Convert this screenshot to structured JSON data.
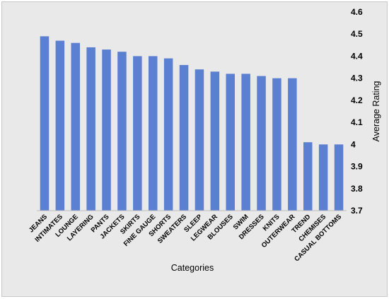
{
  "chart_data": {
    "type": "bar",
    "categories": [
      "JEANS",
      "INTIMATES",
      "LOUNGE",
      "LAYERING",
      "PANTS",
      "JACKETS",
      "SKIRTS",
      "FINE GAUGE",
      "SHORTS",
      "SWEATERS",
      "SLEEP",
      "LEGWEAR",
      "BLOUSES",
      "SWIM",
      "DRESSES",
      "KNITS",
      "OUTERWEAR",
      "TREND",
      "CHEMISES",
      "CASUAL BOTTOMS"
    ],
    "values": [
      4.49,
      4.47,
      4.46,
      4.44,
      4.43,
      4.42,
      4.4,
      4.4,
      4.39,
      4.36,
      4.34,
      4.33,
      4.32,
      4.32,
      4.31,
      4.3,
      4.3,
      4.01,
      4.0,
      4.0
    ],
    "xlabel": "Categories",
    "ylabel": "Average Rating",
    "ylim": [
      3.7,
      4.6
    ],
    "yticks": [
      "3.7",
      "3.8",
      "3.9",
      "4",
      "4.1",
      "4.2",
      "4.3",
      "4.4",
      "4.5",
      "4.6"
    ],
    "y_axis_position": "right",
    "grid": false,
    "legend": "none",
    "bar_color": "#5b7fd1",
    "background_color": "#e9e9e9"
  }
}
